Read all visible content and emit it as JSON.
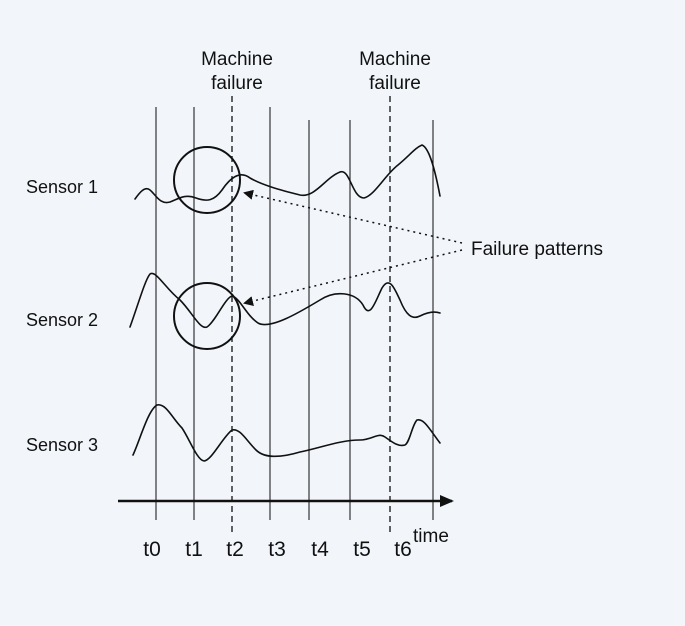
{
  "diagram": {
    "background": "#f2f6fb",
    "ink": "#111111",
    "sensors": [
      {
        "label": "Sensor 1"
      },
      {
        "label": "Sensor 2"
      },
      {
        "label": "Sensor 3"
      }
    ],
    "time_ticks": [
      "t0",
      "t1",
      "t2",
      "t3",
      "t4",
      "t5",
      "t6"
    ],
    "axis_label": "time",
    "failure_events": [
      {
        "line1": "Machine",
        "line2": "failure"
      },
      {
        "line1": "Machine",
        "line2": "failure"
      }
    ],
    "annotation": "Failure patterns"
  }
}
